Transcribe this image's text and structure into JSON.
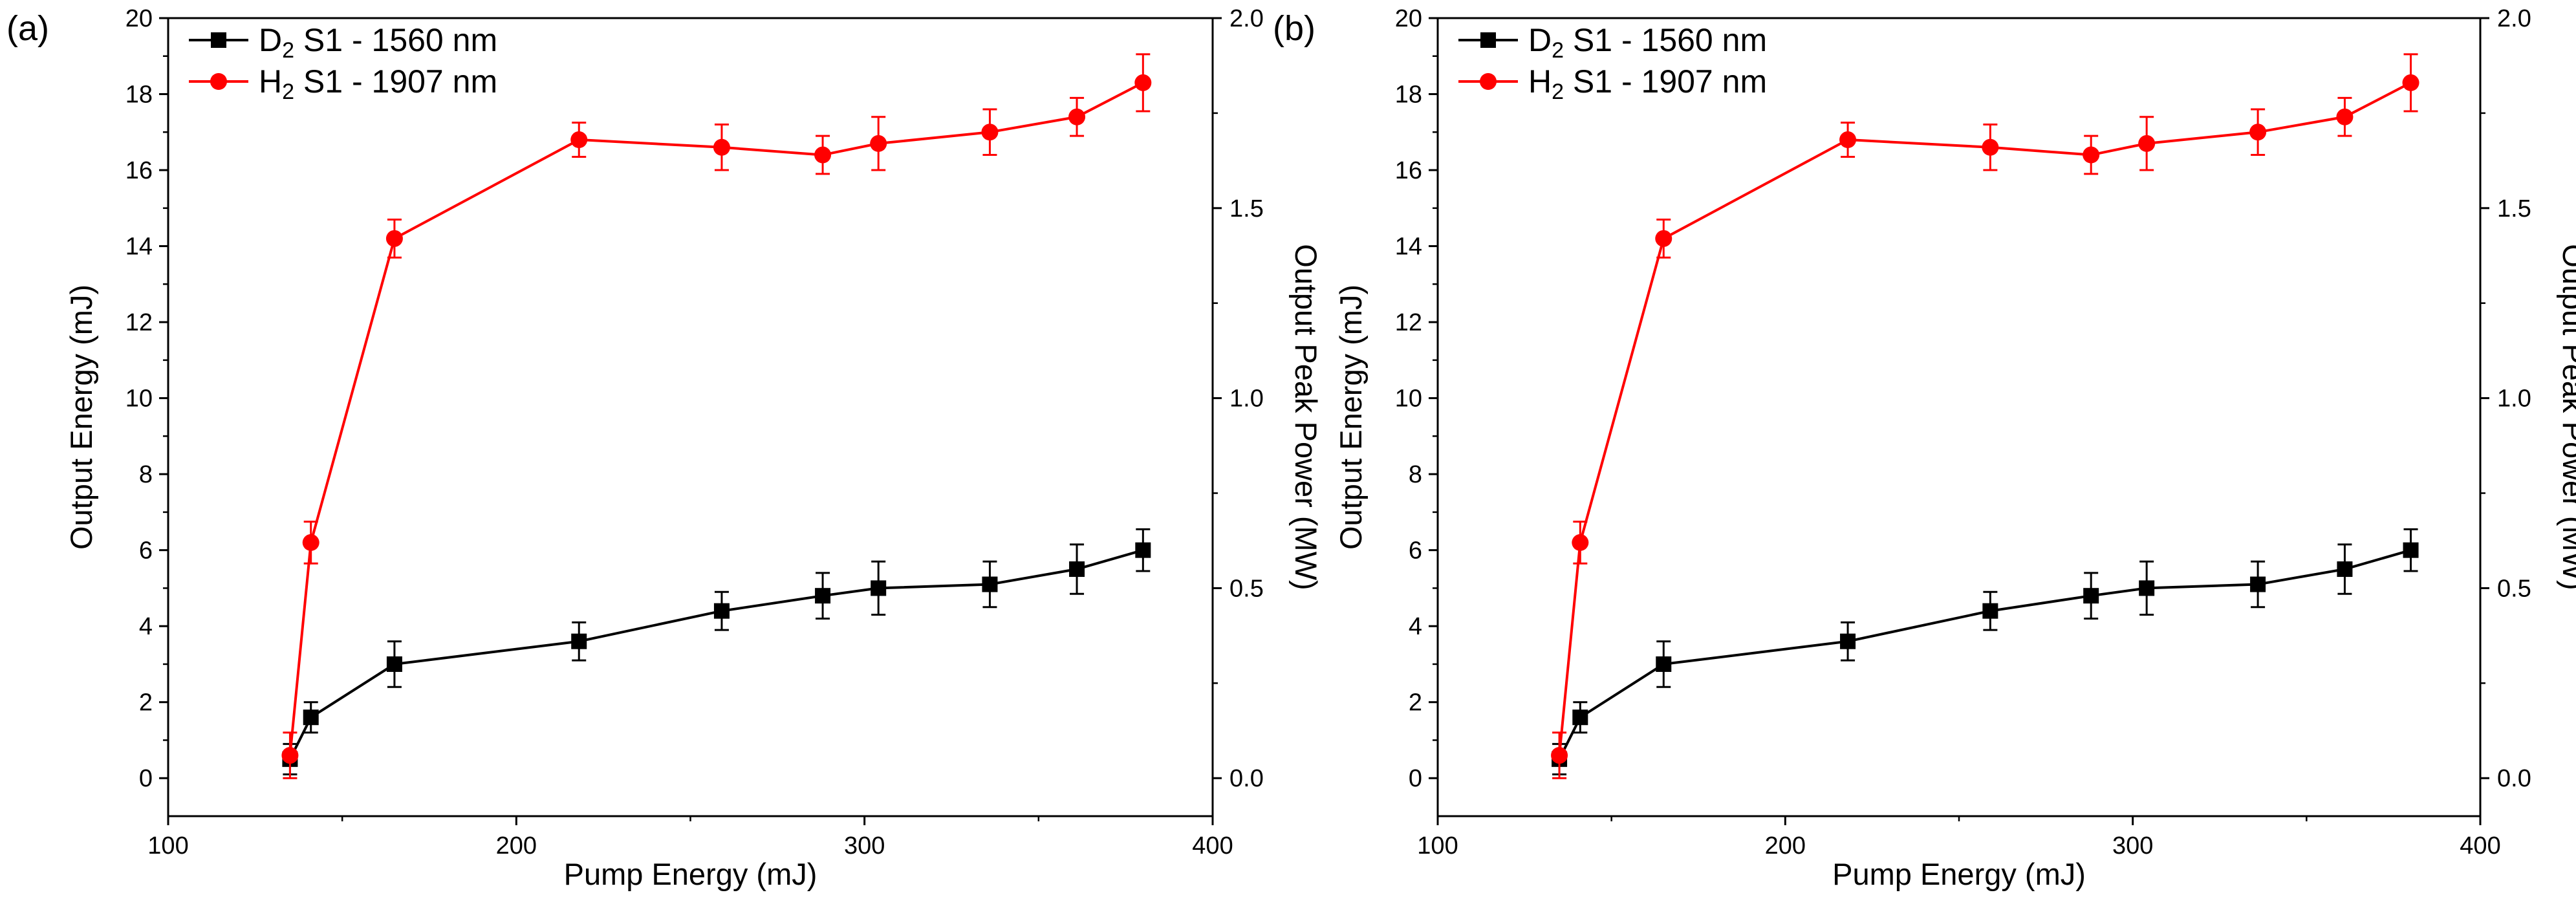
{
  "chart_data": [
    {
      "type": "line",
      "panel_label": "(a)",
      "xlabel": "Pump Energy (mJ)",
      "ylabel": "Output Energy (mJ)",
      "ylabel_right": "Output Peak Power (MW)",
      "xlim": [
        100,
        400
      ],
      "ylim": [
        -1,
        20
      ],
      "ylim_right": [
        -0.1,
        2.0
      ],
      "x_ticks": [
        100,
        200,
        300,
        400
      ],
      "x_tick_labels": [
        "100",
        "200",
        "300",
        "400"
      ],
      "y_ticks": [
        0,
        2,
        4,
        6,
        8,
        10,
        12,
        14,
        16,
        18,
        20
      ],
      "y_tick_labels": [
        "0",
        "2",
        "4",
        "6",
        "8",
        "10",
        "12",
        "14",
        "16",
        "18",
        "20"
      ],
      "y_right_ticks": [
        0.0,
        0.5,
        1.0,
        1.5,
        2.0
      ],
      "y_right_tick_labels": [
        "0.0",
        "0.5",
        "1.0",
        "1.5",
        "2.0"
      ],
      "legend_position": "top-left",
      "series": [
        {
          "name": "D2 S1 - 1560 nm",
          "legend_main": "D",
          "legend_sub": "2",
          "legend_rest": " S1 - 1560 nm",
          "color": "#000000",
          "marker": "square",
          "x": [
            135,
            141,
            165,
            218,
            259,
            288,
            304,
            336,
            361,
            380
          ],
          "y": [
            0.5,
            1.6,
            3.0,
            3.6,
            4.4,
            4.8,
            5.0,
            5.1,
            5.5,
            6.0
          ],
          "err": [
            0.4,
            0.4,
            0.6,
            0.5,
            0.5,
            0.6,
            0.7,
            0.6,
            0.65,
            0.55
          ]
        },
        {
          "name": "H2 S1 - 1907 nm",
          "legend_main": "H",
          "legend_sub": "2",
          "legend_rest": " S1 - 1907 nm",
          "color": "#ff0000",
          "marker": "circle",
          "x": [
            135,
            141,
            165,
            218,
            259,
            288,
            304,
            336,
            361,
            380
          ],
          "y": [
            0.6,
            6.2,
            14.2,
            16.8,
            16.6,
            16.4,
            16.7,
            17.0,
            17.4,
            18.3
          ],
          "err": [
            0.6,
            0.55,
            0.5,
            0.45,
            0.6,
            0.5,
            0.7,
            0.6,
            0.5,
            0.75
          ]
        }
      ]
    },
    {
      "type": "line",
      "panel_label": "(b)",
      "xlabel": "Pump Energy (mJ)",
      "ylabel": "Output Energy (mJ)",
      "ylabel_right": "Output Peak Power (MW)",
      "xlim": [
        100,
        400
      ],
      "ylim": [
        -1,
        20
      ],
      "ylim_right": [
        -0.1,
        2.0
      ],
      "x_ticks": [
        100,
        200,
        300,
        400
      ],
      "x_tick_labels": [
        "100",
        "200",
        "300",
        "400"
      ],
      "y_ticks": [
        0,
        2,
        4,
        6,
        8,
        10,
        12,
        14,
        16,
        18,
        20
      ],
      "y_tick_labels": [
        "0",
        "2",
        "4",
        "6",
        "8",
        "10",
        "12",
        "14",
        "16",
        "18",
        "20"
      ],
      "y_right_ticks": [
        0.0,
        0.5,
        1.0,
        1.5,
        2.0
      ],
      "y_right_tick_labels": [
        "0.0",
        "0.5",
        "1.0",
        "1.5",
        "2.0"
      ],
      "legend_position": "top-left",
      "series": [
        {
          "name": "D2 S1 - 1560 nm",
          "legend_main": "D",
          "legend_sub": "2",
          "legend_rest": " S1 - 1560 nm",
          "color": "#000000",
          "marker": "square",
          "x": [
            135,
            141,
            165,
            218,
            259,
            288,
            304,
            336,
            361,
            380
          ],
          "y": [
            0.5,
            1.6,
            3.0,
            3.6,
            4.4,
            4.8,
            5.0,
            5.1,
            5.5,
            6.0
          ],
          "err": [
            0.4,
            0.4,
            0.6,
            0.5,
            0.5,
            0.6,
            0.7,
            0.6,
            0.65,
            0.55
          ]
        },
        {
          "name": "H2 S1 - 1907 nm",
          "legend_main": "H",
          "legend_sub": "2",
          "legend_rest": " S1 - 1907 nm",
          "color": "#ff0000",
          "marker": "circle",
          "x": [
            135,
            141,
            165,
            218,
            259,
            288,
            304,
            336,
            361,
            380
          ],
          "y": [
            0.6,
            6.2,
            14.2,
            16.8,
            16.6,
            16.4,
            16.7,
            17.0,
            17.4,
            18.3
          ],
          "err": [
            0.6,
            0.55,
            0.5,
            0.45,
            0.6,
            0.5,
            0.7,
            0.6,
            0.5,
            0.75
          ]
        }
      ]
    }
  ]
}
